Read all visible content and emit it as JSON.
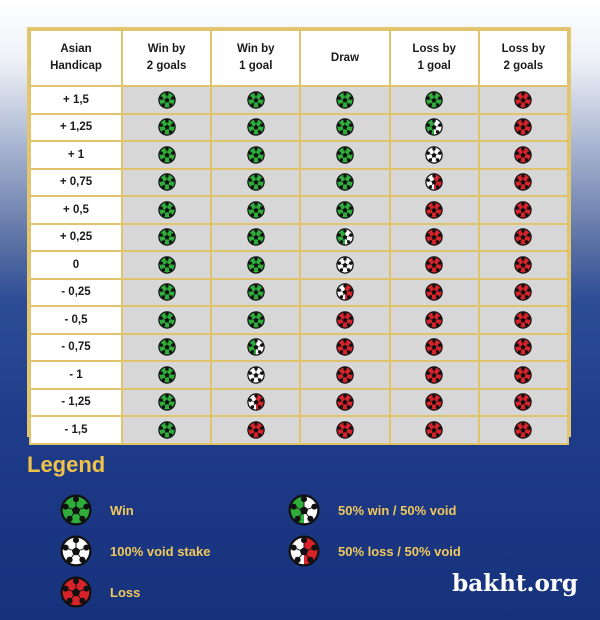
{
  "table": {
    "header": [
      "Asian\nHandicap",
      "Win by\n2 goals",
      "Win by\n1 goal",
      "Draw",
      "Loss by\n1 goal",
      "Loss by\n2 goals"
    ],
    "rows": [
      {
        "handicap": "+ 1,5",
        "results": [
          "win",
          "win",
          "win",
          "win",
          "loss"
        ]
      },
      {
        "handicap": "+ 1,25",
        "results": [
          "win",
          "win",
          "win",
          "half-win",
          "loss"
        ]
      },
      {
        "handicap": "+ 1",
        "results": [
          "win",
          "win",
          "win",
          "void",
          "loss"
        ]
      },
      {
        "handicap": "+ 0,75",
        "results": [
          "win",
          "win",
          "win",
          "half-loss",
          "loss"
        ]
      },
      {
        "handicap": "+ 0,5",
        "results": [
          "win",
          "win",
          "win",
          "loss",
          "loss"
        ]
      },
      {
        "handicap": "+ 0,25",
        "results": [
          "win",
          "win",
          "half-win",
          "loss",
          "loss"
        ]
      },
      {
        "handicap": "0",
        "results": [
          "win",
          "win",
          "void",
          "loss",
          "loss"
        ]
      },
      {
        "handicap": "- 0,25",
        "results": [
          "win",
          "win",
          "half-loss",
          "loss",
          "loss"
        ]
      },
      {
        "handicap": "- 0,5",
        "results": [
          "win",
          "win",
          "loss",
          "loss",
          "loss"
        ]
      },
      {
        "handicap": "- 0,75",
        "results": [
          "win",
          "half-win",
          "loss",
          "loss",
          "loss"
        ]
      },
      {
        "handicap": "- 1",
        "results": [
          "win",
          "void",
          "loss",
          "loss",
          "loss"
        ]
      },
      {
        "handicap": "- 1,25",
        "results": [
          "win",
          "half-loss",
          "loss",
          "loss",
          "loss"
        ]
      },
      {
        "handicap": "- 1,5",
        "results": [
          "win",
          "loss",
          "loss",
          "loss",
          "loss"
        ]
      }
    ]
  },
  "legend": {
    "title": "Legend",
    "items": [
      {
        "type": "win",
        "label": "Win"
      },
      {
        "type": "half-win",
        "label": "50% win / 50% void"
      },
      {
        "type": "void",
        "label": "100% void stake"
      },
      {
        "type": "half-loss",
        "label": "50% loss / 50% void"
      },
      {
        "type": "loss",
        "label": "Loss"
      }
    ]
  },
  "colors": {
    "win": "#2fae3c",
    "loss": "#d8232a",
    "void": "#ffffff",
    "gold": "#f0c24a",
    "border": "#e0c36a"
  },
  "icons": {
    "win": "green-soccer-ball-icon",
    "loss": "red-soccer-ball-icon",
    "void": "white-soccer-ball-icon",
    "half-win": "half-green-soccer-ball-icon",
    "half-loss": "half-red-soccer-ball-icon"
  },
  "brand": "bakht.org"
}
